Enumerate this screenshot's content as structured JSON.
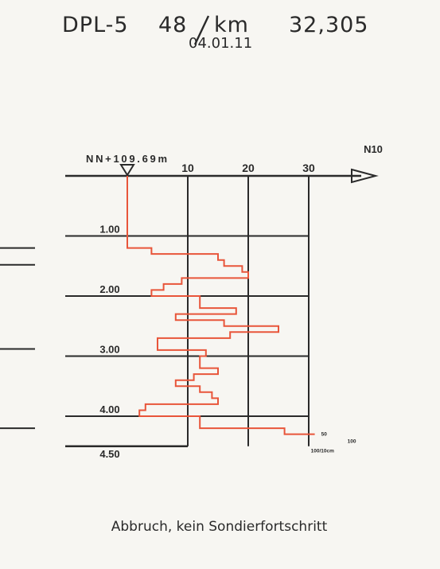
{
  "header": {
    "probe_id": "DPL-5",
    "number": "48",
    "km_label": "km",
    "km_value": "32,305",
    "date": "04.01.11"
  },
  "chart_data": {
    "type": "line",
    "title": "",
    "reference_label": "NN+109.69m",
    "x_axis_label": "N10",
    "x_ticks": [
      10,
      20,
      30
    ],
    "xlim": [
      0,
      40
    ],
    "y_ticks": [
      "1.00",
      "2.00",
      "3.00",
      "4.00",
      "4.50"
    ],
    "ylim": [
      0,
      4.5
    ],
    "series": [
      {
        "color": "#e8553a",
        "points": [
          [
            0,
            0
          ],
          [
            0,
            1.2
          ],
          [
            4,
            1.2
          ],
          [
            4,
            1.3
          ],
          [
            15,
            1.3
          ],
          [
            15,
            1.4
          ],
          [
            16,
            1.4
          ],
          [
            16,
            1.5
          ],
          [
            19,
            1.5
          ],
          [
            19,
            1.6
          ],
          [
            20,
            1.6
          ],
          [
            20,
            1.7
          ],
          [
            9,
            1.7
          ],
          [
            9,
            1.8
          ],
          [
            6,
            1.8
          ],
          [
            6,
            1.9
          ],
          [
            4,
            1.9
          ],
          [
            4,
            2.0
          ],
          [
            12,
            2.0
          ],
          [
            12,
            2.2
          ],
          [
            18,
            2.2
          ],
          [
            18,
            2.3
          ],
          [
            8,
            2.3
          ],
          [
            8,
            2.4
          ],
          [
            16,
            2.4
          ],
          [
            16,
            2.5
          ],
          [
            25,
            2.5
          ],
          [
            25,
            2.6
          ],
          [
            17,
            2.6
          ],
          [
            17,
            2.7
          ],
          [
            5,
            2.7
          ],
          [
            5,
            2.9
          ],
          [
            13,
            2.9
          ],
          [
            13,
            3.0
          ],
          [
            12,
            3.0
          ],
          [
            12,
            3.2
          ],
          [
            15,
            3.2
          ],
          [
            15,
            3.3
          ],
          [
            11,
            3.3
          ],
          [
            11,
            3.4
          ],
          [
            8,
            3.4
          ],
          [
            8,
            3.5
          ],
          [
            12,
            3.5
          ],
          [
            12,
            3.6
          ],
          [
            14,
            3.6
          ],
          [
            14,
            3.7
          ],
          [
            15,
            3.7
          ],
          [
            15,
            3.8
          ],
          [
            3,
            3.8
          ],
          [
            3,
            3.9
          ],
          [
            2,
            3.9
          ],
          [
            2,
            4.0
          ],
          [
            12,
            4.0
          ],
          [
            12,
            4.2
          ],
          [
            26,
            4.2
          ],
          [
            26,
            4.3
          ],
          [
            31,
            4.3
          ]
        ]
      }
    ],
    "end_annotations": [
      "50",
      "100",
      "100/10cm"
    ]
  },
  "footer": {
    "note": "Abbruch, kein Sondierfortschritt"
  },
  "side_markers_depths": [
    1.2,
    1.48,
    2.88,
    4.2
  ]
}
